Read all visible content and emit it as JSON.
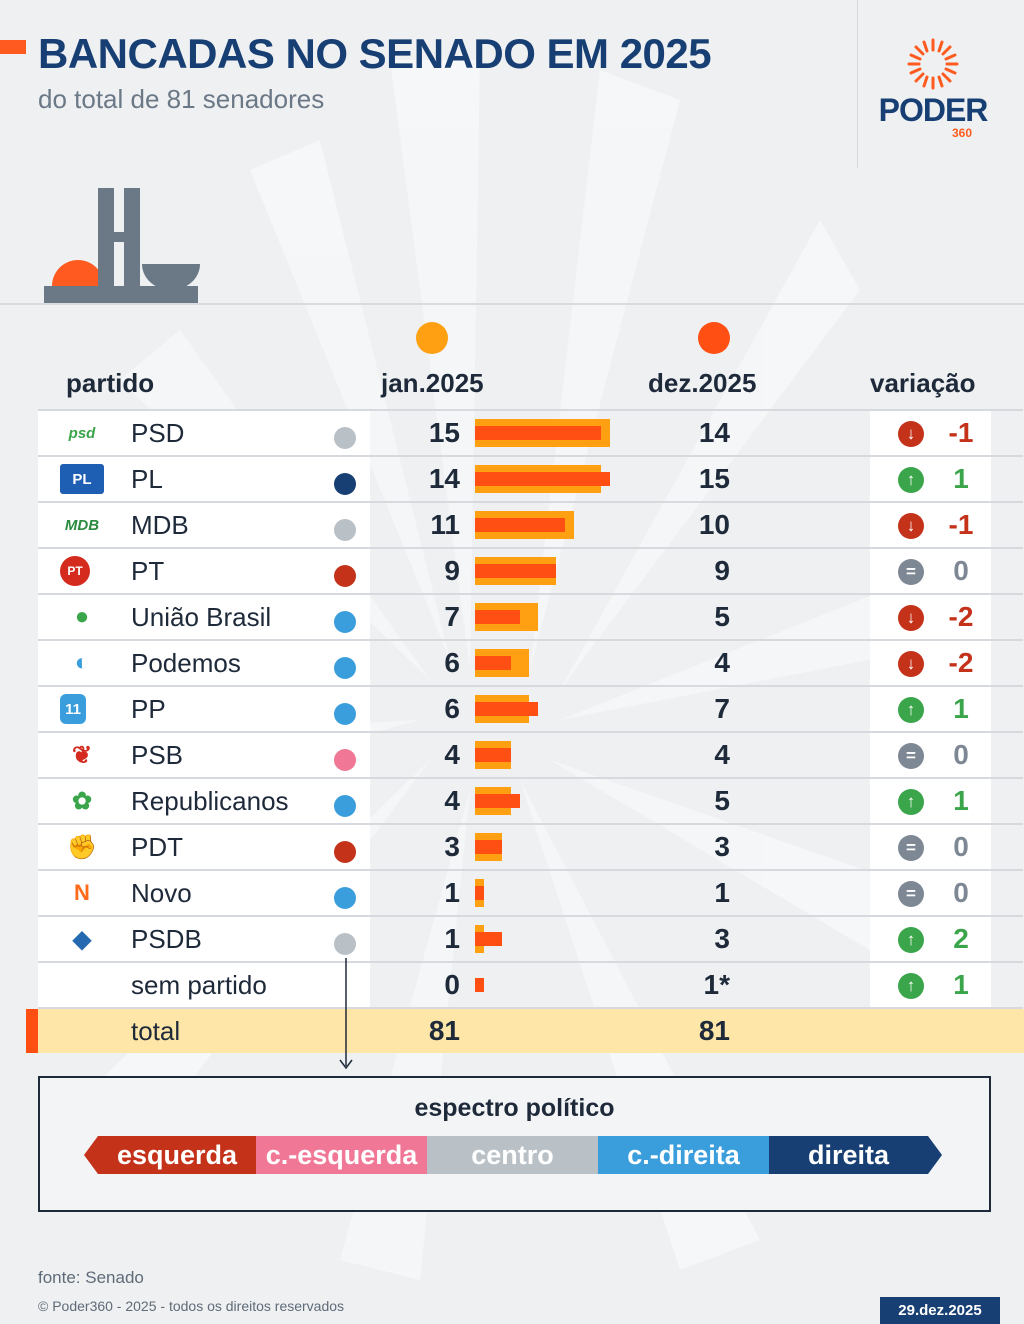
{
  "header": {
    "title": "BANCADAS NO SENADO EM 2025",
    "subtitle": "do total de 81 senadores",
    "logo_word": "PODER",
    "logo_number": "360"
  },
  "columns": {
    "party": "partido",
    "jan": "jan.2025",
    "dez": "dez.2025",
    "variation": "variação"
  },
  "colors": {
    "jan": "#ffa012",
    "dez": "#ff4f12",
    "up": "#3aa54a",
    "down": "#c4321a",
    "equal": "#7d8894"
  },
  "chart_data": {
    "type": "bar",
    "title": "BANCADAS NO SENADO EM 2025",
    "subtitle": "do total de 81 senadores",
    "categories": [
      "PSD",
      "PL",
      "MDB",
      "PT",
      "União Brasil",
      "Podemos",
      "PP",
      "PSB",
      "Republicanos",
      "PDT",
      "Novo",
      "PSDB",
      "sem partido"
    ],
    "series": [
      {
        "name": "jan.2025",
        "values": [
          15,
          14,
          11,
          9,
          7,
          6,
          6,
          4,
          4,
          3,
          1,
          1,
          0
        ]
      },
      {
        "name": "dez.2025",
        "values": [
          14,
          15,
          10,
          9,
          5,
          4,
          7,
          4,
          5,
          3,
          1,
          3,
          1
        ]
      }
    ],
    "variation": [
      -1,
      1,
      -1,
      0,
      -2,
      -2,
      1,
      0,
      1,
      0,
      0,
      2,
      1
    ],
    "dez_labels": [
      "14",
      "15",
      "10",
      "9",
      "5",
      "4",
      "7",
      "4",
      "5",
      "3",
      "1",
      "3",
      "1*"
    ],
    "xlim": [
      0,
      15
    ],
    "total": {
      "label": "total",
      "jan": 81,
      "dez": 81
    }
  },
  "rows": [
    {
      "name": "PSD",
      "logo": "psd",
      "spectrum": "centro",
      "jan": "15",
      "dez": "14",
      "var": "-1",
      "trend": "down"
    },
    {
      "name": "PL",
      "logo": "PL",
      "spectrum": "direita",
      "jan": "14",
      "dez": "15",
      "var": "1",
      "trend": "up"
    },
    {
      "name": "MDB",
      "logo": "MDB",
      "spectrum": "centro",
      "jan": "11",
      "dez": "10",
      "var": "-1",
      "trend": "down"
    },
    {
      "name": "PT",
      "logo": "PT",
      "spectrum": "esquerda",
      "jan": "9",
      "dez": "9",
      "var": "0",
      "trend": "equal"
    },
    {
      "name": "União Brasil",
      "logo": "",
      "spectrum": "centro-direita",
      "jan": "7",
      "dez": "5",
      "var": "-2",
      "trend": "down"
    },
    {
      "name": "Podemos",
      "logo": "",
      "spectrum": "centro-direita",
      "jan": "6",
      "dez": "4",
      "var": "-2",
      "trend": "down"
    },
    {
      "name": "PP",
      "logo": "11",
      "spectrum": "centro-direita",
      "jan": "6",
      "dez": "7",
      "var": "1",
      "trend": "up"
    },
    {
      "name": "PSB",
      "logo": "",
      "spectrum": "centro-esquerda",
      "jan": "4",
      "dez": "4",
      "var": "0",
      "trend": "equal"
    },
    {
      "name": "Republicanos",
      "logo": "",
      "spectrum": "centro-direita",
      "jan": "4",
      "dez": "5",
      "var": "1",
      "trend": "up"
    },
    {
      "name": "PDT",
      "logo": "",
      "spectrum": "esquerda",
      "jan": "3",
      "dez": "3",
      "var": "0",
      "trend": "equal"
    },
    {
      "name": "Novo",
      "logo": "N",
      "spectrum": "centro-direita",
      "jan": "1",
      "dez": "1",
      "var": "0",
      "trend": "equal"
    },
    {
      "name": "PSDB",
      "logo": "",
      "spectrum": "centro",
      "jan": "1",
      "dez": "3",
      "var": "2",
      "trend": "up"
    },
    {
      "name": "sem partido",
      "logo": "",
      "spectrum": "",
      "jan": "0",
      "dez": "1*",
      "var": "1",
      "trend": "up"
    }
  ],
  "total": {
    "label": "total",
    "jan": "81",
    "dez": "81"
  },
  "spectrum": {
    "title": "espectro político",
    "segments": [
      {
        "label": "esquerda",
        "color": "#c4321a"
      },
      {
        "label": "c.-esquerda",
        "color": "#f07896"
      },
      {
        "label": "centro",
        "color": "#b9c0c6"
      },
      {
        "label": "c.-direita",
        "color": "#3b9edc"
      },
      {
        "label": "direita",
        "color": "#183f73"
      }
    ]
  },
  "spectrum_colors": {
    "esquerda": "#c4321a",
    "centro-esquerda": "#f07896",
    "centro": "#b9c0c6",
    "centro-direita": "#3b9edc",
    "direita": "#183f73"
  },
  "footer": {
    "source": "fonte: Senado",
    "copyright": "© Poder360 - 2025 - todos os direitos reservados",
    "date": "29.dez.2025"
  }
}
